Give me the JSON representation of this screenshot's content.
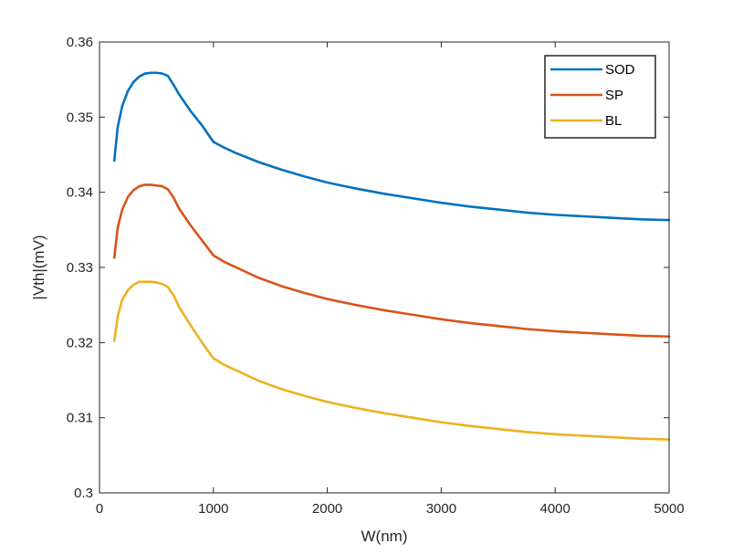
{
  "chart_data": {
    "type": "line",
    "title": "",
    "xlabel": "W(nm)",
    "ylabel": "|Vth|(mV)",
    "xlim": [
      0,
      5000
    ],
    "ylim": [
      0.3,
      0.36
    ],
    "xticks": [
      0,
      1000,
      2000,
      3000,
      4000,
      5000
    ],
    "xtick_labels": [
      "0",
      "1000",
      "2000",
      "3000",
      "4000",
      "5000"
    ],
    "yticks": [
      0.3,
      0.31,
      0.32,
      0.33,
      0.34,
      0.35,
      0.36
    ],
    "ytick_labels": [
      "0.3",
      "0.31",
      "0.32",
      "0.33",
      "0.34",
      "0.35",
      "0.36"
    ],
    "grid": false,
    "legend_position": "top-right",
    "series": [
      {
        "name": "SOD",
        "color": "#0072BD",
        "x": [
          130,
          160,
          200,
          250,
          300,
          350,
          400,
          450,
          500,
          550,
          600,
          650,
          700,
          800,
          900,
          1000,
          1100,
          1200,
          1400,
          1600,
          1800,
          2000,
          2250,
          2500,
          2750,
          3000,
          3250,
          3500,
          3750,
          4000,
          4250,
          4500,
          4750,
          5000
        ],
        "y": [
          0.3442,
          0.3487,
          0.3515,
          0.3535,
          0.3547,
          0.3554,
          0.3558,
          0.3559,
          0.3559,
          0.3558,
          0.3555,
          0.3543,
          0.353,
          0.3508,
          0.3489,
          0.3467,
          0.3459,
          0.3452,
          0.344,
          0.343,
          0.3421,
          0.3413,
          0.3405,
          0.3398,
          0.3392,
          0.3386,
          0.3381,
          0.3377,
          0.3373,
          0.337,
          0.3368,
          0.3366,
          0.3364,
          0.3363
        ]
      },
      {
        "name": "SP",
        "color": "#D95319",
        "x": [
          130,
          160,
          200,
          250,
          300,
          350,
          400,
          450,
          500,
          550,
          600,
          650,
          700,
          800,
          900,
          1000,
          1100,
          1200,
          1400,
          1600,
          1800,
          2000,
          2250,
          2500,
          2750,
          3000,
          3250,
          3500,
          3750,
          4000,
          4250,
          4500,
          4750,
          5000
        ],
        "y": [
          0.3313,
          0.3353,
          0.3377,
          0.3394,
          0.3403,
          0.3408,
          0.341,
          0.341,
          0.3409,
          0.3408,
          0.3404,
          0.3393,
          0.3378,
          0.3356,
          0.3336,
          0.3316,
          0.3307,
          0.33,
          0.3286,
          0.3275,
          0.3266,
          0.3258,
          0.325,
          0.3243,
          0.3237,
          0.3231,
          0.3226,
          0.3222,
          0.3218,
          0.3215,
          0.3213,
          0.3211,
          0.3209,
          0.3208
        ]
      },
      {
        "name": "BL",
        "color": "#EDB120",
        "x": [
          130,
          160,
          200,
          250,
          300,
          350,
          400,
          450,
          500,
          550,
          600,
          650,
          700,
          800,
          900,
          1000,
          1100,
          1200,
          1400,
          1600,
          1800,
          2000,
          2250,
          2500,
          2750,
          3000,
          3250,
          3500,
          3750,
          4000,
          4250,
          4500,
          4750,
          5000
        ],
        "y": [
          0.3202,
          0.3235,
          0.3257,
          0.327,
          0.3277,
          0.3281,
          0.3281,
          0.3281,
          0.328,
          0.3278,
          0.3274,
          0.3263,
          0.3247,
          0.3223,
          0.32,
          0.3179,
          0.317,
          0.3163,
          0.3149,
          0.3138,
          0.3129,
          0.3121,
          0.3113,
          0.3106,
          0.31,
          0.3094,
          0.3089,
          0.3085,
          0.3081,
          0.3078,
          0.3076,
          0.3074,
          0.3072,
          0.3071
        ]
      }
    ]
  }
}
